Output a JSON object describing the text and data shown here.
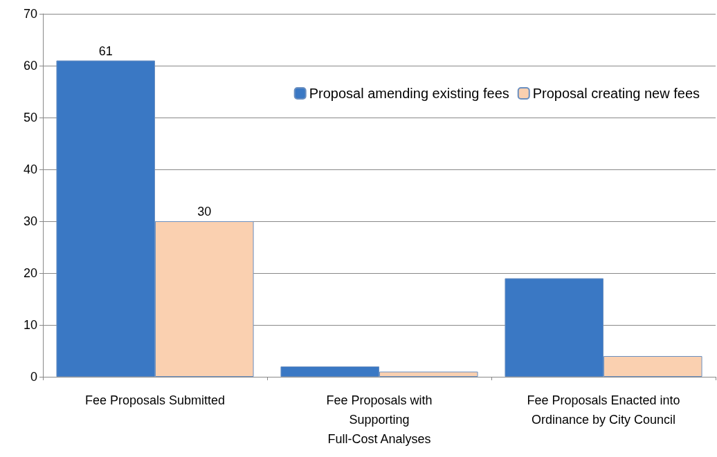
{
  "chart_data": {
    "type": "bar",
    "categories": [
      "Fee Proposals Submitted",
      "Fee Proposals with\nSupporting\nFull-Cost Analyses",
      "Fee Proposals Enacted into\nOrdinance by City Council"
    ],
    "series": [
      {
        "name": "Proposal amending existing fees",
        "color": "#3a78c4",
        "values": [
          61,
          2,
          19
        ],
        "value_labels": [
          "61",
          null,
          null
        ]
      },
      {
        "name": "Proposal creating new fees",
        "color": "#fad0b0",
        "values": [
          30,
          1,
          4
        ],
        "value_labels": [
          "30",
          null,
          null
        ]
      }
    ],
    "ylim": [
      0,
      70
    ],
    "yticks": [
      0,
      10,
      20,
      30,
      40,
      50,
      60,
      70
    ],
    "grid": "y",
    "legend": "top right"
  }
}
